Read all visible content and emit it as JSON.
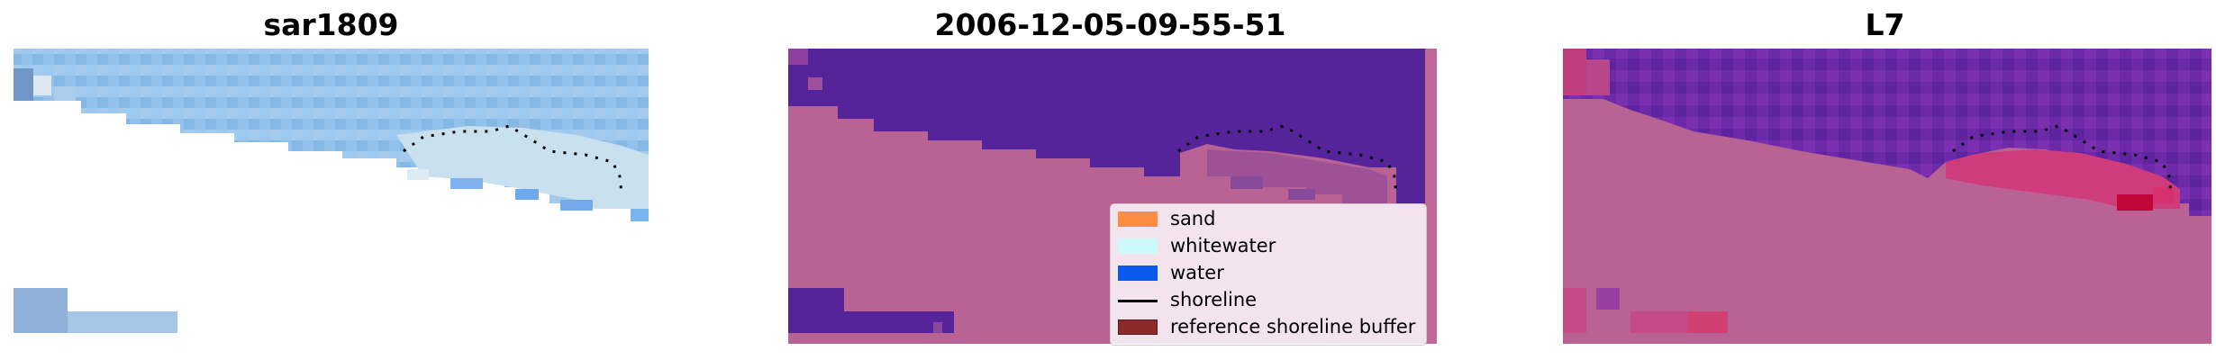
{
  "panels": [
    {
      "title": "sar1809"
    },
    {
      "title": "2006-12-05-09-55-51"
    },
    {
      "title": "L7"
    }
  ],
  "legend": {
    "items": [
      {
        "label": "sand",
        "color": "#ff8c40",
        "kind": "patch"
      },
      {
        "label": "whitewater",
        "color": "#ccfafa",
        "kind": "patch"
      },
      {
        "label": "water",
        "color": "#0a5af0",
        "kind": "patch"
      },
      {
        "label": "shoreline",
        "color": "#000000",
        "kind": "line"
      },
      {
        "label": "reference shoreline buffer",
        "color": "#8b2a2a",
        "kind": "patch"
      }
    ]
  },
  "colors": {
    "land_overlay": "#b96394",
    "water_overlay": "#55249a",
    "image_sky": "#8cbde8"
  }
}
